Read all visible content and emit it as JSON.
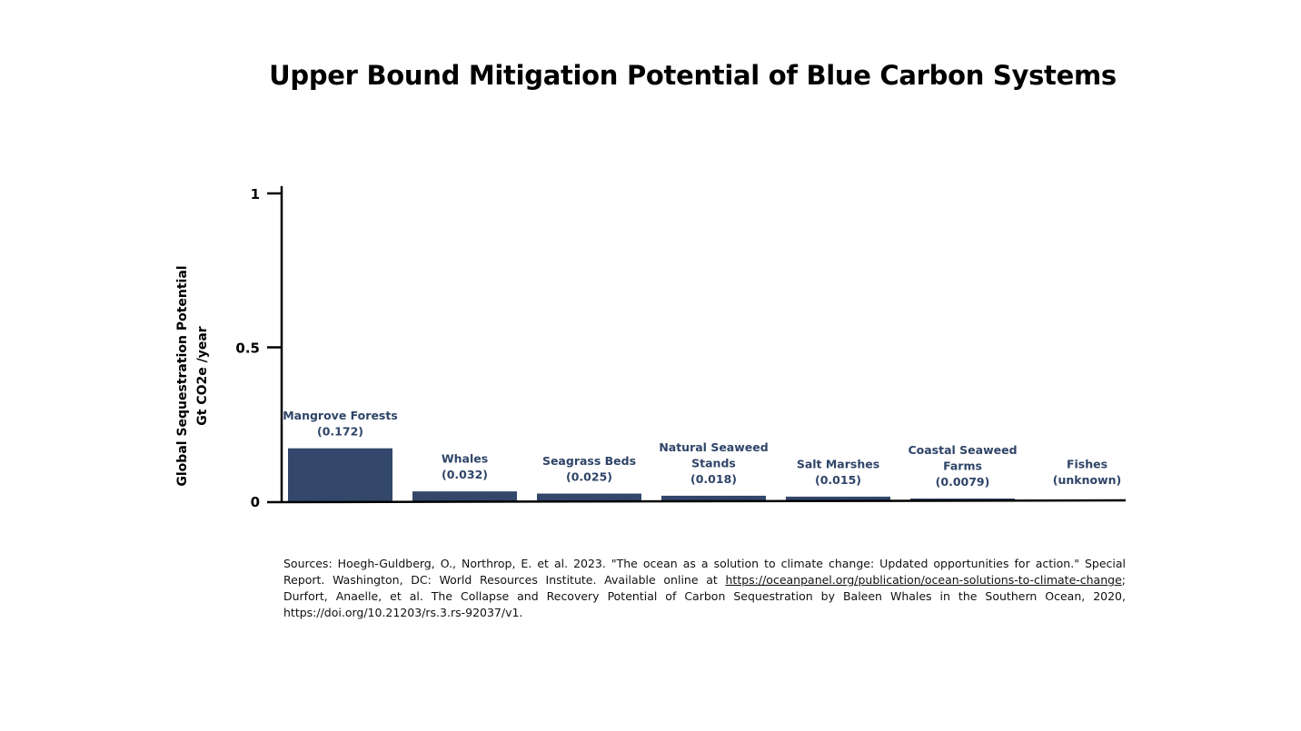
{
  "chart_data": {
    "type": "bar",
    "title": "Upper Bound Mitigation Potential of Blue Carbon Systems",
    "ylabel_lines": [
      "Global Sequestration Potential",
      "Gt CO2e /year"
    ],
    "ylim": [
      0,
      1
    ],
    "yticks": [
      {
        "value": 0,
        "label": "0"
      },
      {
        "value": 0.5,
        "label": "0.5"
      },
      {
        "value": 1,
        "label": "1"
      }
    ],
    "categories": [
      "Mangrove Forests",
      "Whales",
      "Seagrass Beds",
      "Natural Seaweed Stands",
      "Salt Marshes",
      "Coastal Seaweed Farms",
      "Fishes"
    ],
    "values": [
      0.172,
      0.032,
      0.025,
      0.018,
      0.015,
      0.0079,
      null
    ],
    "labels": [
      [
        "Mangrove Forests",
        "(0.172)"
      ],
      [
        "Whales",
        "(0.032)"
      ],
      [
        "Seagrass Beds",
        "(0.025)"
      ],
      [
        "Natural Seaweed",
        "Stands",
        "(0.018)"
      ],
      [
        "Salt Marshes",
        "(0.015)"
      ],
      [
        "Coastal Seaweed",
        "Farms",
        "(0.0079)"
      ],
      [
        "Fishes",
        "(unknown)"
      ]
    ],
    "bar_color": "#33476b",
    "label_color": "#2f4468",
    "grid": false
  },
  "sources": {
    "before_link": "Sources: Hoegh-Guldberg, O., Northrop, E. et al. 2023. \"The ocean as a solution to climate change: Updated opportunities for action.\" Special Report. Washington, DC: World Resources Institute. Available online at ",
    "link_text": "https://oceanpanel.org/publication/ocean-solutions-to-climate-change",
    "after_link": "; Durfort, Anaelle, et al. The Collapse and Recovery Potential of Carbon Sequestration by Baleen Whales in the Southern Ocean, 2020, https://doi.org/10.21203/rs.3.rs-92037/v1."
  }
}
